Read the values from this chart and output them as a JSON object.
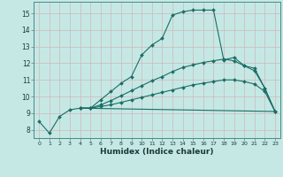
{
  "xlabel": "Humidex (Indice chaleur)",
  "bg_color": "#c5e8e5",
  "grid_color_major": "#b8d8d5",
  "grid_color_minor": "#cce8e5",
  "line_color": "#1a6e65",
  "xlim": [
    -0.5,
    23.5
  ],
  "ylim": [
    7.5,
    15.7
  ],
  "xticks": [
    0,
    1,
    2,
    3,
    4,
    5,
    6,
    7,
    8,
    9,
    10,
    11,
    12,
    13,
    14,
    15,
    16,
    17,
    18,
    19,
    20,
    21,
    22,
    23
  ],
  "yticks": [
    8,
    9,
    10,
    11,
    12,
    13,
    14,
    15
  ],
  "line1_x": [
    0,
    1,
    2,
    3,
    4,
    5,
    6,
    7,
    8,
    9,
    10,
    11,
    12,
    13,
    14,
    15,
    16,
    17,
    18,
    19,
    20,
    21,
    22,
    23
  ],
  "line1_y": [
    8.5,
    7.8,
    8.8,
    9.2,
    9.3,
    9.3,
    9.8,
    10.3,
    10.8,
    11.2,
    12.5,
    13.1,
    13.5,
    14.9,
    15.1,
    15.2,
    15.2,
    15.2,
    12.2,
    12.35,
    11.85,
    11.7,
    10.5,
    9.1
  ],
  "line2_x": [
    4,
    5,
    6,
    7,
    8,
    9,
    10,
    11,
    12,
    13,
    14,
    15,
    16,
    17,
    18,
    19,
    20,
    21,
    22,
    23
  ],
  "line2_y": [
    9.3,
    9.3,
    9.5,
    9.75,
    10.05,
    10.35,
    10.65,
    10.95,
    11.2,
    11.5,
    11.75,
    11.9,
    12.05,
    12.15,
    12.25,
    12.15,
    11.85,
    11.55,
    10.5,
    9.1
  ],
  "line3_x": [
    4,
    5,
    6,
    7,
    8,
    9,
    10,
    11,
    12,
    13,
    14,
    15,
    16,
    17,
    18,
    19,
    20,
    21,
    22,
    23
  ],
  "line3_y": [
    9.3,
    9.3,
    9.4,
    9.5,
    9.65,
    9.8,
    9.95,
    10.1,
    10.25,
    10.4,
    10.55,
    10.7,
    10.8,
    10.9,
    11.0,
    11.0,
    10.9,
    10.75,
    10.3,
    9.1
  ],
  "line4_x": [
    4,
    23
  ],
  "line4_y": [
    9.3,
    9.1
  ]
}
